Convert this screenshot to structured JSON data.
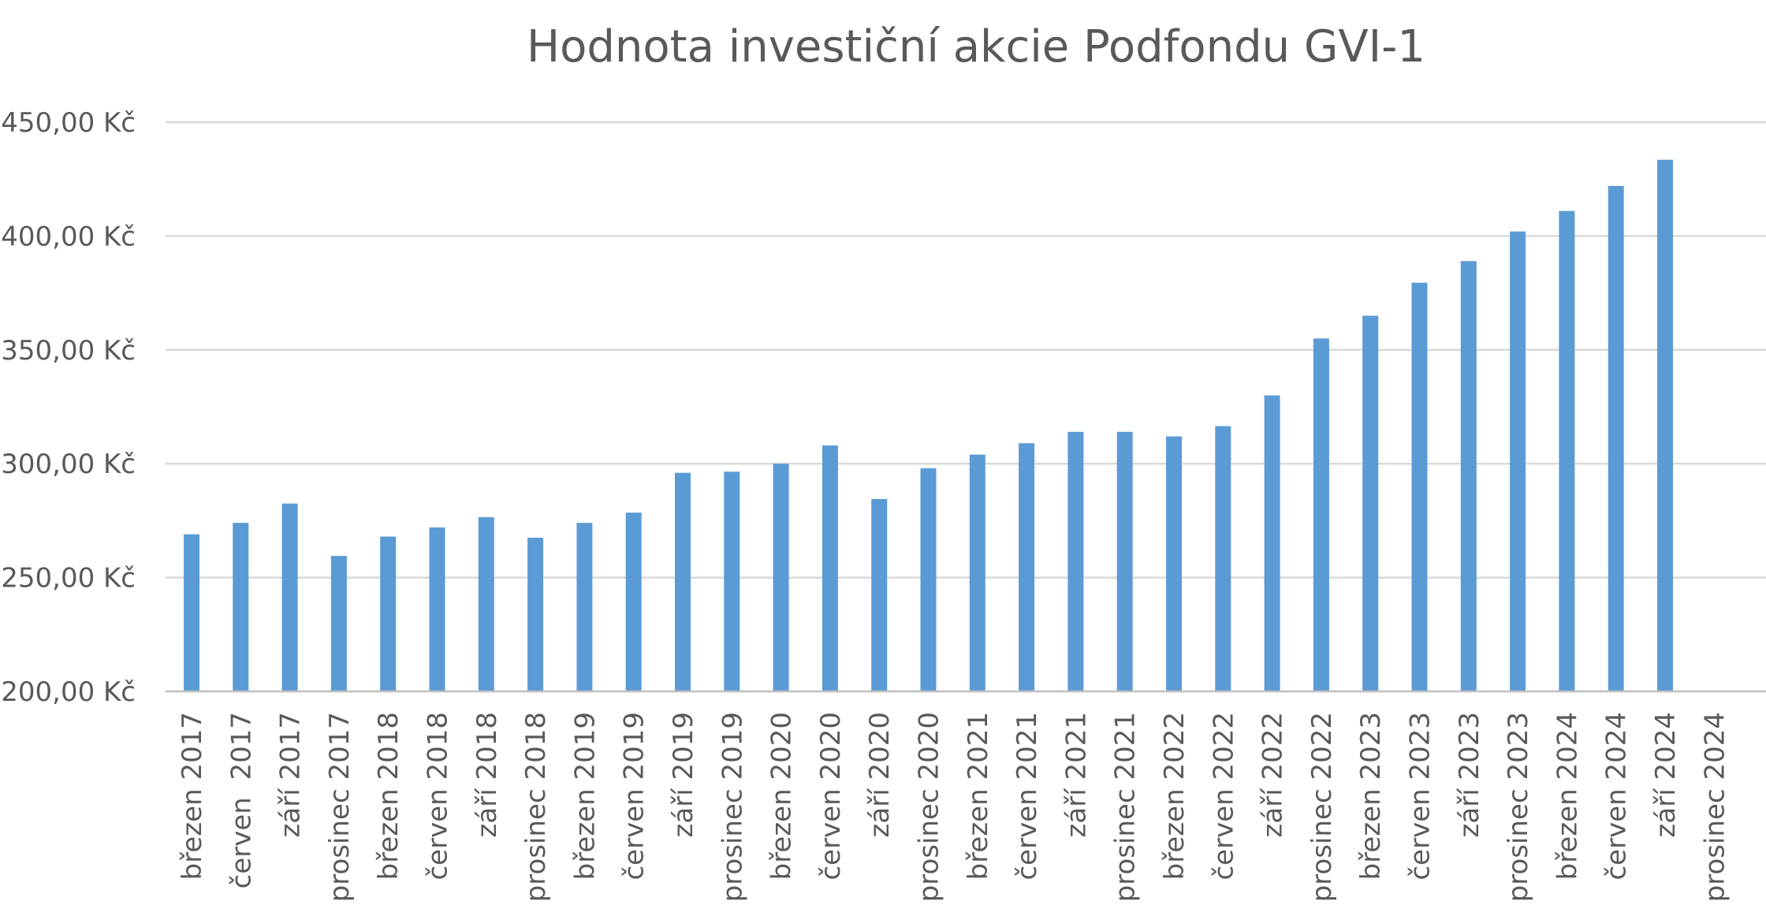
{
  "chart_data": {
    "type": "bar",
    "title": "Hodnota investiční akcie Podfondu GVI-1",
    "xlabel": "",
    "ylabel": "",
    "ylim": [
      200,
      450
    ],
    "yticks": [
      200,
      250,
      300,
      350,
      400,
      450
    ],
    "ytick_labels": [
      "200,00 Kč",
      "250,00 Kč",
      "300,00 Kč",
      "350,00 Kč",
      "400,00 Kč",
      "450,00 Kč"
    ],
    "grid": true,
    "legend": "none",
    "bar_color": "#5b9bd5",
    "categories": [
      "březen 2017",
      "červen  2017",
      "září 2017",
      "prosinec 2017",
      "březen 2018",
      "červen 2018",
      "září 2018",
      "prosinec 2018",
      "březen 2019",
      "červen 2019",
      "září 2019",
      "prosinec 2019",
      "březen 2020",
      "červen 2020",
      "září 2020",
      "prosinec 2020",
      "březen 2021",
      "červen 2021",
      "září 2021",
      "prosinec 2021",
      "březen 2022",
      "červen 2022",
      "září 2022",
      "prosinec 2022",
      "březen 2023",
      "červen 2023",
      "září 2023",
      "prosinec 2023",
      "březen 2024",
      "červen 2024",
      "září 2024",
      "prosinec 2024"
    ],
    "values": [
      269,
      274,
      282.5,
      259.5,
      268,
      272,
      276.5,
      267.5,
      274,
      278.5,
      296,
      296.5,
      300,
      308,
      284.5,
      298,
      304,
      309,
      314,
      314,
      312,
      316.5,
      330,
      355,
      365,
      379.5,
      389,
      402,
      411,
      422,
      433.5,
      null
    ]
  }
}
